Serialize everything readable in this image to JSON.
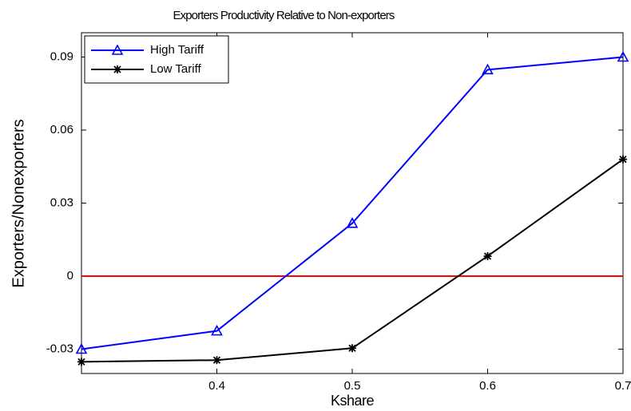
{
  "chart_data": {
    "type": "line",
    "title": "Exporters Productivity Relative to Non-exporters",
    "x_label": "Kshare",
    "y_label": "Exporters/Nonexporters",
    "x": [
      0.3,
      0.4,
      0.5,
      0.6,
      0.7
    ],
    "series": [
      {
        "name": "High Tariff",
        "color": "#0000ff",
        "marker": "triangle",
        "values": [
          -0.03,
          -0.0225,
          0.0217,
          0.0848,
          0.09
        ]
      },
      {
        "name": "Low Tariff",
        "color": "#000000",
        "marker": "asterisk",
        "values": [
          -0.0352,
          -0.0345,
          -0.0296,
          0.0082,
          0.048
        ]
      }
    ],
    "reference_line": {
      "value": 0,
      "color": "#ff0000"
    },
    "xlim": [
      0.3,
      0.7
    ],
    "xticks": [
      0.4,
      0.5,
      0.6,
      0.7
    ],
    "ylim": [
      -0.04,
      0.1
    ],
    "yticks": [
      -0.03,
      0,
      0.03,
      0.06,
      0.09
    ],
    "legend": "upper left"
  }
}
